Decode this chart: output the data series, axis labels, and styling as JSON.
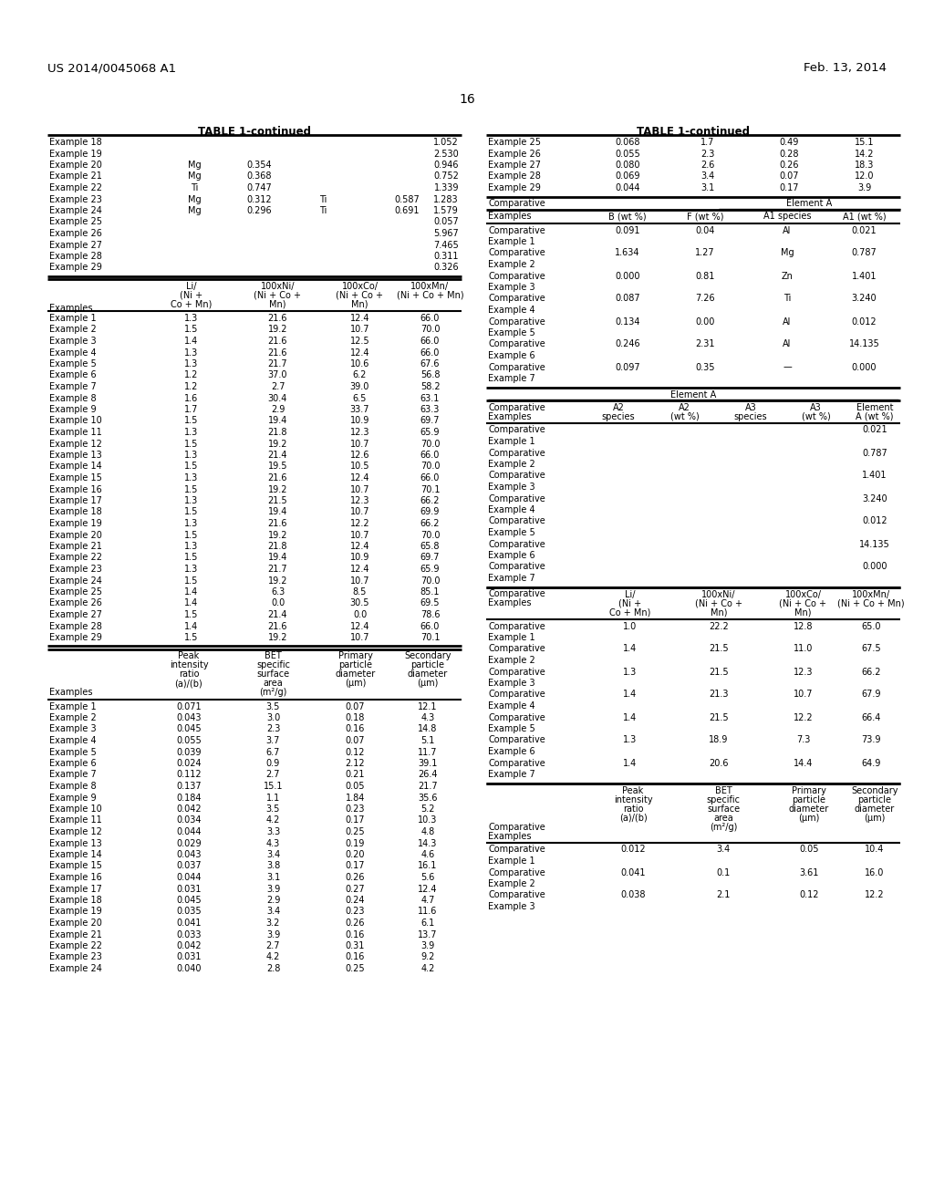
{
  "page_number": "16",
  "patent_number": "US 2014/0045068 A1",
  "patent_date": "Feb. 13, 2014",
  "background_color": "#ffffff",
  "left_top_rows": [
    [
      "Example 18",
      "",
      "",
      "",
      "",
      "1.052"
    ],
    [
      "Example 19",
      "",
      "",
      "",
      "",
      "2.530"
    ],
    [
      "Example 20",
      "Mg",
      "0.354",
      "",
      "",
      "0.946"
    ],
    [
      "Example 21",
      "Mg",
      "0.368",
      "",
      "",
      "0.752"
    ],
    [
      "Example 22",
      "Ti",
      "0.747",
      "",
      "",
      "1.339"
    ],
    [
      "Example 23",
      "Mg",
      "0.312",
      "Ti",
      "0.587",
      "1.283"
    ],
    [
      "Example 24",
      "Mg",
      "0.296",
      "Ti",
      "0.691",
      "1.579"
    ],
    [
      "Example 25",
      "",
      "",
      "",
      "",
      "0.057"
    ],
    [
      "Example 26",
      "",
      "",
      "",
      "",
      "5.967"
    ],
    [
      "Example 27",
      "",
      "",
      "",
      "",
      "7.465"
    ],
    [
      "Example 28",
      "",
      "",
      "",
      "",
      "0.311"
    ],
    [
      "Example 29",
      "",
      "",
      "",
      "",
      "0.326"
    ]
  ],
  "left_mid_rows": [
    [
      "Example 1",
      "1.3",
      "21.6",
      "12.4",
      "66.0"
    ],
    [
      "Example 2",
      "1.5",
      "19.2",
      "10.7",
      "70.0"
    ],
    [
      "Example 3",
      "1.4",
      "21.6",
      "12.5",
      "66.0"
    ],
    [
      "Example 4",
      "1.3",
      "21.6",
      "12.4",
      "66.0"
    ],
    [
      "Example 5",
      "1.3",
      "21.7",
      "10.6",
      "67.6"
    ],
    [
      "Example 6",
      "1.2",
      "37.0",
      "6.2",
      "56.8"
    ],
    [
      "Example 7",
      "1.2",
      "2.7",
      "39.0",
      "58.2"
    ],
    [
      "Example 8",
      "1.6",
      "30.4",
      "6.5",
      "63.1"
    ],
    [
      "Example 9",
      "1.7",
      "2.9",
      "33.7",
      "63.3"
    ],
    [
      "Example 10",
      "1.5",
      "19.4",
      "10.9",
      "69.7"
    ],
    [
      "Example 11",
      "1.3",
      "21.8",
      "12.3",
      "65.9"
    ],
    [
      "Example 12",
      "1.5",
      "19.2",
      "10.7",
      "70.0"
    ],
    [
      "Example 13",
      "1.3",
      "21.4",
      "12.6",
      "66.0"
    ],
    [
      "Example 14",
      "1.5",
      "19.5",
      "10.5",
      "70.0"
    ],
    [
      "Example 15",
      "1.3",
      "21.6",
      "12.4",
      "66.0"
    ],
    [
      "Example 16",
      "1.5",
      "19.2",
      "10.7",
      "70.1"
    ],
    [
      "Example 17",
      "1.3",
      "21.5",
      "12.3",
      "66.2"
    ],
    [
      "Example 18",
      "1.5",
      "19.4",
      "10.7",
      "69.9"
    ],
    [
      "Example 19",
      "1.3",
      "21.6",
      "12.2",
      "66.2"
    ],
    [
      "Example 20",
      "1.5",
      "19.2",
      "10.7",
      "70.0"
    ],
    [
      "Example 21",
      "1.3",
      "21.8",
      "12.4",
      "65.8"
    ],
    [
      "Example 22",
      "1.5",
      "19.4",
      "10.9",
      "69.7"
    ],
    [
      "Example 23",
      "1.3",
      "21.7",
      "12.4",
      "65.9"
    ],
    [
      "Example 24",
      "1.5",
      "19.2",
      "10.7",
      "70.0"
    ],
    [
      "Example 25",
      "1.4",
      "6.3",
      "8.5",
      "85.1"
    ],
    [
      "Example 26",
      "1.4",
      "0.0",
      "30.5",
      "69.5"
    ],
    [
      "Example 27",
      "1.5",
      "21.4",
      "0.0",
      "78.6"
    ],
    [
      "Example 28",
      "1.4",
      "21.6",
      "12.4",
      "66.0"
    ],
    [
      "Example 29",
      "1.5",
      "19.2",
      "10.7",
      "70.1"
    ]
  ],
  "left_bot_rows": [
    [
      "Example 1",
      "0.071",
      "3.5",
      "0.07",
      "12.1"
    ],
    [
      "Example 2",
      "0.043",
      "3.0",
      "0.18",
      "4.3"
    ],
    [
      "Example 3",
      "0.045",
      "2.3",
      "0.16",
      "14.8"
    ],
    [
      "Example 4",
      "0.055",
      "3.7",
      "0.07",
      "5.1"
    ],
    [
      "Example 5",
      "0.039",
      "6.7",
      "0.12",
      "11.7"
    ],
    [
      "Example 6",
      "0.024",
      "0.9",
      "2.12",
      "39.1"
    ],
    [
      "Example 7",
      "0.112",
      "2.7",
      "0.21",
      "26.4"
    ],
    [
      "Example 8",
      "0.137",
      "15.1",
      "0.05",
      "21.7"
    ],
    [
      "Example 9",
      "0.184",
      "1.1",
      "1.84",
      "35.6"
    ],
    [
      "Example 10",
      "0.042",
      "3.5",
      "0.23",
      "5.2"
    ],
    [
      "Example 11",
      "0.034",
      "4.2",
      "0.17",
      "10.3"
    ],
    [
      "Example 12",
      "0.044",
      "3.3",
      "0.25",
      "4.8"
    ],
    [
      "Example 13",
      "0.029",
      "4.3",
      "0.19",
      "14.3"
    ],
    [
      "Example 14",
      "0.043",
      "3.4",
      "0.20",
      "4.6"
    ],
    [
      "Example 15",
      "0.037",
      "3.8",
      "0.17",
      "16.1"
    ],
    [
      "Example 16",
      "0.044",
      "3.1",
      "0.26",
      "5.6"
    ],
    [
      "Example 17",
      "0.031",
      "3.9",
      "0.27",
      "12.4"
    ],
    [
      "Example 18",
      "0.045",
      "2.9",
      "0.24",
      "4.7"
    ],
    [
      "Example 19",
      "0.035",
      "3.4",
      "0.23",
      "11.6"
    ],
    [
      "Example 20",
      "0.041",
      "3.2",
      "0.26",
      "6.1"
    ],
    [
      "Example 21",
      "0.033",
      "3.9",
      "0.16",
      "13.7"
    ],
    [
      "Example 22",
      "0.042",
      "2.7",
      "0.31",
      "3.9"
    ],
    [
      "Example 23",
      "0.031",
      "4.2",
      "0.16",
      "9.2"
    ],
    [
      "Example 24",
      "0.040",
      "2.8",
      "0.25",
      "4.2"
    ]
  ],
  "right_top_rows": [
    [
      "Example 25",
      "0.068",
      "1.7",
      "0.49",
      "15.1"
    ],
    [
      "Example 26",
      "0.055",
      "2.3",
      "0.28",
      "14.2"
    ],
    [
      "Example 27",
      "0.080",
      "2.6",
      "0.26",
      "18.3"
    ],
    [
      "Example 28",
      "0.069",
      "3.4",
      "0.07",
      "12.0"
    ],
    [
      "Example 29",
      "0.044",
      "3.1",
      "0.17",
      "3.9"
    ]
  ],
  "right_cmp_b_rows": [
    [
      "Comparative",
      "0.091",
      "0.04",
      "Al",
      "0.021"
    ],
    [
      "Example 1",
      "",
      "",
      "",
      ""
    ],
    [
      "Comparative",
      "1.634",
      "1.27",
      "Mg",
      "0.787"
    ],
    [
      "Example 2",
      "",
      "",
      "",
      ""
    ],
    [
      "Comparative",
      "0.000",
      "0.81",
      "Zn",
      "1.401"
    ],
    [
      "Example 3",
      "",
      "",
      "",
      ""
    ],
    [
      "Comparative",
      "0.087",
      "7.26",
      "Ti",
      "3.240"
    ],
    [
      "Example 4",
      "",
      "",
      "",
      ""
    ],
    [
      "Comparative",
      "0.134",
      "0.00",
      "Al",
      "0.012"
    ],
    [
      "Example 5",
      "",
      "",
      "",
      ""
    ],
    [
      "Comparative",
      "0.246",
      "2.31",
      "Al",
      "14.135"
    ],
    [
      "Example 6",
      "",
      "",
      "",
      ""
    ],
    [
      "Comparative",
      "0.097",
      "0.35",
      "—",
      "0.000"
    ],
    [
      "Example 7",
      "",
      "",
      "",
      ""
    ]
  ],
  "right_cmp_ea_rows": [
    [
      "Comparative",
      "",
      "",
      "",
      "",
      "0.021"
    ],
    [
      "Example 1",
      "",
      "",
      "",
      "",
      ""
    ],
    [
      "Comparative",
      "",
      "",
      "",
      "",
      "0.787"
    ],
    [
      "Example 2",
      "",
      "",
      "",
      "",
      ""
    ],
    [
      "Comparative",
      "",
      "",
      "",
      "",
      "1.401"
    ],
    [
      "Example 3",
      "",
      "",
      "",
      "",
      ""
    ],
    [
      "Comparative",
      "",
      "",
      "",
      "",
      "3.240"
    ],
    [
      "Example 4",
      "",
      "",
      "",
      "",
      ""
    ],
    [
      "Comparative",
      "",
      "",
      "",
      "",
      "0.012"
    ],
    [
      "Example 5",
      "",
      "",
      "",
      "",
      ""
    ],
    [
      "Comparative",
      "",
      "",
      "",
      "",
      "14.135"
    ],
    [
      "Example 6",
      "",
      "",
      "",
      "",
      ""
    ],
    [
      "Comparative",
      "",
      "",
      "",
      "",
      "0.000"
    ],
    [
      "Example 7",
      "",
      "",
      "",
      "",
      ""
    ]
  ],
  "right_cmp_li_rows": [
    [
      "Comparative",
      "1.0",
      "22.2",
      "12.8",
      "65.0"
    ],
    [
      "Example 1",
      "",
      "",
      "",
      ""
    ],
    [
      "Comparative",
      "1.4",
      "21.5",
      "11.0",
      "67.5"
    ],
    [
      "Example 2",
      "",
      "",
      "",
      ""
    ],
    [
      "Comparative",
      "1.3",
      "21.5",
      "12.3",
      "66.2"
    ],
    [
      "Example 3",
      "",
      "",
      "",
      ""
    ],
    [
      "Comparative",
      "1.4",
      "21.3",
      "10.7",
      "67.9"
    ],
    [
      "Example 4",
      "",
      "",
      "",
      ""
    ],
    [
      "Comparative",
      "1.4",
      "21.5",
      "12.2",
      "66.4"
    ],
    [
      "Example 5",
      "",
      "",
      "",
      ""
    ],
    [
      "Comparative",
      "1.3",
      "18.9",
      "7.3",
      "73.9"
    ],
    [
      "Example 6",
      "",
      "",
      "",
      ""
    ],
    [
      "Comparative",
      "1.4",
      "20.6",
      "14.4",
      "64.9"
    ],
    [
      "Example 7",
      "",
      "",
      "",
      ""
    ]
  ],
  "right_cmp_bet_rows": [
    [
      "Comparative",
      "0.012",
      "3.4",
      "0.05",
      "10.4"
    ],
    [
      "Example 1",
      "",
      "",
      "",
      ""
    ],
    [
      "Comparative",
      "0.041",
      "0.1",
      "3.61",
      "16.0"
    ],
    [
      "Example 2",
      "",
      "",
      "",
      ""
    ],
    [
      "Comparative",
      "0.038",
      "2.1",
      "0.12",
      "12.2"
    ],
    [
      "Example 3",
      "",
      "",
      "",
      ""
    ]
  ]
}
